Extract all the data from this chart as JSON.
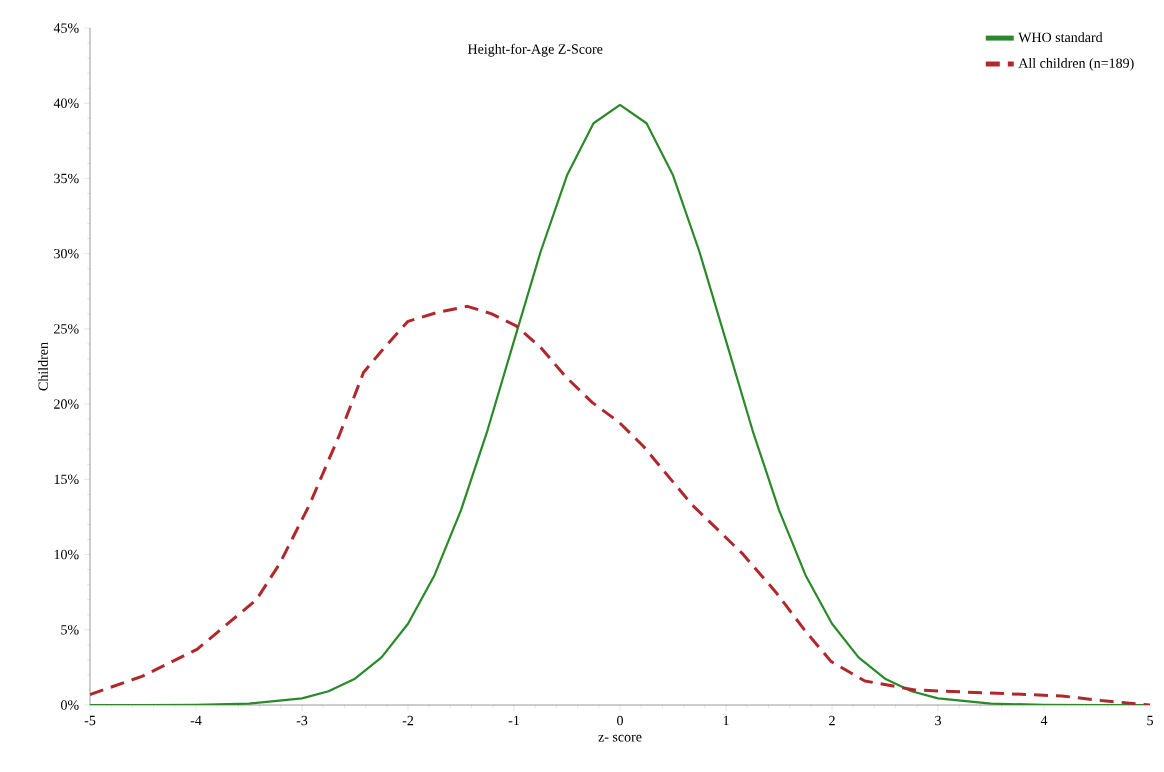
{
  "chart_data": {
    "type": "line",
    "title": "Height-for-Age Z-Score",
    "xlabel": "z- score",
    "ylabel": "Children",
    "xlim": [
      -5,
      5
    ],
    "ylim": [
      0,
      45
    ],
    "xticks": [
      -5,
      -4,
      -3,
      -2,
      -1,
      0,
      1,
      2,
      3,
      4,
      5
    ],
    "yticks": [
      {
        "value": 0,
        "label": "0%"
      },
      {
        "value": 5,
        "label": "5%"
      },
      {
        "value": 10,
        "label": "10%"
      },
      {
        "value": 15,
        "label": "15%"
      },
      {
        "value": 20,
        "label": "20%"
      },
      {
        "value": 25,
        "label": "25%"
      },
      {
        "value": 30,
        "label": "30%"
      },
      {
        "value": 35,
        "label": "35%"
      },
      {
        "value": 40,
        "label": "40%"
      },
      {
        "value": 45,
        "label": "45%"
      }
    ],
    "grid": false,
    "legend": "top right",
    "series": [
      {
        "name": "WHO standard",
        "color": "#2a8a2a",
        "line_style": "solid",
        "x": [
          -5,
          -4.5,
          -4,
          -3.5,
          -3,
          -2.75,
          -2.5,
          -2.25,
          -2,
          -1.75,
          -1.5,
          -1.25,
          -1,
          -0.75,
          -0.5,
          -0.25,
          0,
          0.25,
          0.5,
          0.75,
          1,
          1.25,
          1.5,
          1.75,
          2,
          2.25,
          2.5,
          2.75,
          3,
          3.5,
          4,
          4.5,
          5
        ],
        "values": [
          0.0,
          0.0,
          0.01,
          0.09,
          0.44,
          0.91,
          1.75,
          3.17,
          5.4,
          8.63,
          12.95,
          18.26,
          24.2,
          30.11,
          35.21,
          38.67,
          39.89,
          38.67,
          35.21,
          30.11,
          24.2,
          18.26,
          12.95,
          8.63,
          5.4,
          3.17,
          1.75,
          0.91,
          0.44,
          0.09,
          0.01,
          0.0,
          0.0
        ]
      },
      {
        "name": "All children (n=189)",
        "color": "#b0282c",
        "line_style": "dashed",
        "x": [
          -5,
          -4.51,
          -3.99,
          -3.43,
          -3.21,
          -2.93,
          -2.65,
          -2.42,
          -2.23,
          -2.0,
          -1.72,
          -1.44,
          -1.21,
          -0.98,
          -0.74,
          -0.51,
          -0.26,
          -0.01,
          0.22,
          0.68,
          1.15,
          1.47,
          1.75,
          1.99,
          2.31,
          2.78,
          3.47,
          4.17,
          4.54,
          5
        ],
        "values": [
          0.7,
          1.9,
          3.7,
          7.0,
          9.4,
          13.3,
          17.9,
          22.1,
          23.7,
          25.5,
          26.1,
          26.5,
          26.0,
          25.2,
          23.7,
          21.8,
          20.1,
          18.8,
          17.2,
          13.3,
          10.1,
          7.5,
          4.9,
          2.9,
          1.6,
          1.0,
          0.8,
          0.6,
          0.3,
          0
        ]
      }
    ]
  }
}
